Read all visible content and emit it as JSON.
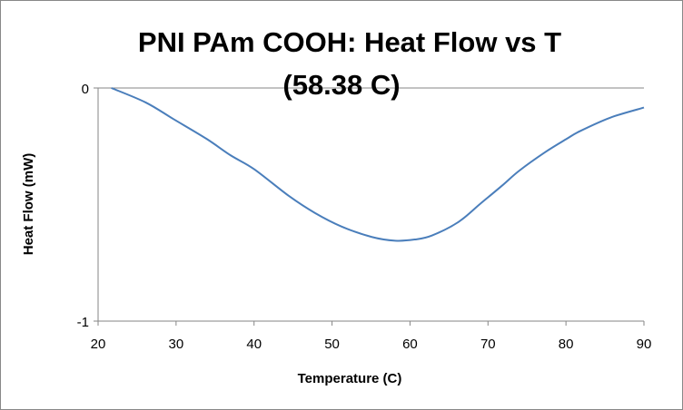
{
  "chart_data": {
    "type": "line",
    "title": "PNI PAm COOH: Heat Flow vs T",
    "subtitle": "(58.38 C)",
    "xlabel": "Temperature (C)",
    "ylabel": "Heat Flow (mW)",
    "xlim": [
      20,
      90
    ],
    "ylim": [
      -1,
      0
    ],
    "xticks": [
      "20",
      "30",
      "40",
      "50",
      "60",
      "70",
      "80",
      "90"
    ],
    "yticks": [
      "0",
      "-1"
    ],
    "grid": false,
    "legend": "none",
    "series": [
      {
        "name": "Heat Flow",
        "color": "#4a7ebb",
        "x": [
          21.7,
          26.1,
          29.7,
          33.9,
          37.0,
          40.0,
          44.5,
          47.8,
          51.2,
          55.1,
          58.1,
          60.6,
          62.8,
          66.2,
          69.0,
          71.8,
          74.0,
          77.3,
          80.1,
          81.8,
          85.7,
          90.0
        ],
        "y": [
          0,
          -0.062,
          -0.134,
          -0.218,
          -0.289,
          -0.348,
          -0.464,
          -0.536,
          -0.594,
          -0.639,
          -0.655,
          -0.65,
          -0.633,
          -0.575,
          -0.497,
          -0.419,
          -0.355,
          -0.276,
          -0.218,
          -0.185,
          -0.127,
          -0.084
        ]
      }
    ]
  }
}
